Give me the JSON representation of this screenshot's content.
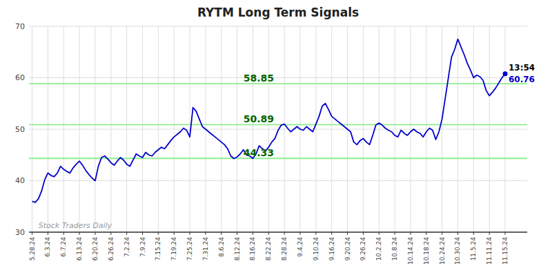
{
  "chart_data": {
    "type": "line",
    "title": "RYTM Long Term Signals",
    "categories": [
      "5.28.24",
      null,
      null,
      null,
      null,
      "6.3.24",
      null,
      null,
      null,
      null,
      "6.7.24",
      null,
      null,
      null,
      null,
      "6.13.24",
      null,
      null,
      null,
      null,
      "6.20.24",
      null,
      null,
      null,
      null,
      "6.26.24",
      null,
      null,
      null,
      null,
      "7.2.24",
      null,
      null,
      null,
      null,
      "7.9.24",
      null,
      null,
      null,
      null,
      "7.15.24",
      null,
      null,
      null,
      null,
      "7.19.24",
      null,
      null,
      null,
      null,
      "7.25.24",
      null,
      null,
      null,
      null,
      "7.31.24",
      null,
      null,
      null,
      null,
      "8.6.24",
      null,
      null,
      null,
      null,
      "8.12.24",
      null,
      null,
      null,
      null,
      "8.16.24",
      null,
      null,
      null,
      null,
      "8.22.24",
      null,
      null,
      null,
      null,
      "8.28.24",
      null,
      null,
      null,
      null,
      "9.4.24",
      null,
      null,
      null,
      null,
      "9.10.24",
      null,
      null,
      null,
      null,
      "9.16.24",
      null,
      null,
      null,
      null,
      "9.20.24",
      null,
      null,
      null,
      null,
      "9.26.24",
      null,
      null,
      null,
      null,
      "10.2.24",
      null,
      null,
      null,
      null,
      "10.8.24",
      null,
      null,
      null,
      null,
      "10.14.24",
      null,
      null,
      null,
      null,
      "10.18.24",
      null,
      null,
      null,
      null,
      "10.24.24",
      null,
      null,
      null,
      null,
      "10.30.24",
      null,
      null,
      null,
      null,
      "11.5.24",
      null,
      null,
      null,
      null,
      "11.11.24",
      null,
      null,
      null,
      null,
      "11.15.24"
    ],
    "values": [
      36.0,
      35.8,
      36.5,
      38.0,
      40.2,
      41.5,
      41.0,
      40.8,
      41.5,
      42.8,
      42.2,
      41.8,
      41.5,
      42.5,
      43.2,
      43.8,
      43.0,
      42.0,
      41.2,
      40.5,
      40.0,
      42.8,
      44.5,
      44.8,
      44.2,
      43.5,
      43.0,
      43.8,
      44.5,
      44.0,
      43.2,
      42.8,
      44.0,
      45.2,
      44.8,
      44.5,
      45.5,
      45.0,
      44.8,
      45.5,
      46.0,
      46.5,
      46.2,
      47.0,
      47.8,
      48.5,
      49.0,
      49.5,
      50.2,
      49.8,
      48.5,
      54.2,
      53.5,
      52.0,
      50.5,
      50.0,
      49.5,
      49.0,
      48.5,
      48.0,
      47.5,
      47.0,
      46.2,
      44.8,
      44.3,
      44.6,
      45.2,
      46.0,
      45.0,
      44.8,
      44.33,
      45.2,
      46.8,
      46.2,
      45.8,
      46.5,
      47.5,
      48.2,
      49.8,
      50.8,
      51.0,
      50.2,
      49.5,
      50.0,
      50.5,
      50.0,
      49.8,
      50.5,
      50.0,
      49.5,
      51.0,
      52.5,
      54.5,
      55.0,
      53.8,
      52.5,
      52.0,
      51.5,
      51.0,
      50.5,
      50.0,
      49.5,
      47.5,
      47.0,
      47.8,
      48.2,
      47.5,
      47.0,
      48.8,
      50.8,
      51.2,
      50.8,
      50.2,
      49.8,
      49.5,
      48.8,
      48.5,
      49.8,
      49.2,
      48.8,
      49.5,
      50.0,
      49.5,
      49.2,
      48.5,
      49.5,
      50.2,
      49.8,
      48.0,
      49.5,
      52.0,
      56.0,
      60.0,
      64.0,
      65.5,
      67.5,
      66.0,
      64.5,
      62.8,
      61.5,
      60.0,
      60.5,
      60.2,
      59.5,
      57.5,
      56.5,
      57.2,
      58.0,
      59.0,
      60.0,
      60.76
    ],
    "color": "#0000CC",
    "ylim": [
      30,
      70
    ],
    "yticks": [
      30,
      40,
      50,
      60,
      70
    ],
    "grid": true,
    "reference_lines": [
      {
        "value": 44.33,
        "label": "44.33",
        "color": "#90EE90",
        "label_color": "#006600"
      },
      {
        "value": 50.89,
        "label": "50.89",
        "color": "#90EE90",
        "label_color": "#006600"
      },
      {
        "value": 58.85,
        "label": "58.85",
        "color": "#90EE90",
        "label_color": "#006600"
      }
    ],
    "annotations": [
      {
        "text": "13:54"
      },
      {
        "text": "Stock Traders Daily"
      }
    ]
  }
}
